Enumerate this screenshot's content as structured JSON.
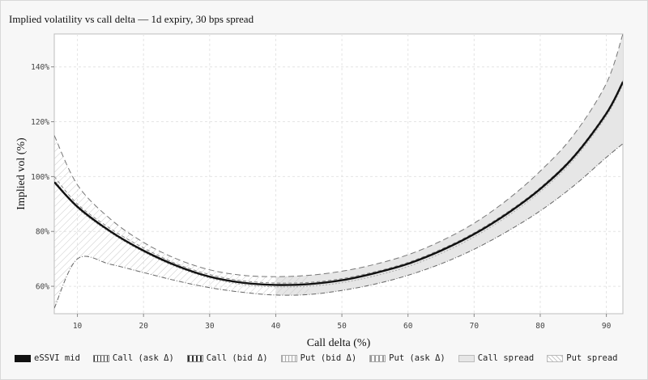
{
  "title": "Implied volatility vs call delta — 1d expiry, 30 bps spread",
  "chart_data": {
    "type": "line",
    "title": "Implied volatility vs call delta — 1d expiry, 30 bps spread",
    "xlabel": "Call delta (%)",
    "ylabel": "Implied vol (%)",
    "xlim": [
      6.5,
      92.5
    ],
    "ylim": [
      50,
      152
    ],
    "x_ticks": [
      10,
      20,
      30,
      40,
      50,
      60,
      70,
      80,
      90
    ],
    "y_ticks": [
      60,
      80,
      100,
      120,
      140
    ],
    "y_tick_labels": [
      "60%",
      "80%",
      "100%",
      "120%",
      "140%"
    ],
    "grid": true,
    "legend_position": "bottom",
    "x": [
      6.5,
      10,
      15,
      20,
      25,
      30,
      35,
      40,
      45,
      50,
      55,
      60,
      65,
      70,
      75,
      80,
      85,
      90,
      92.5
    ],
    "series": [
      {
        "name": "eSSVI mid",
        "values": [
          98,
          89,
          80,
          73,
          67.5,
          63.5,
          61.3,
          60.5,
          60.8,
          62.2,
          64.8,
          68.2,
          73,
          79,
          86.5,
          95.5,
          107,
          123,
          134.5
        ]
      },
      {
        "name": "Call (ask Δ)",
        "values": [
          115,
          97,
          84.5,
          76,
          70,
          66,
          64,
          63.5,
          64,
          65.5,
          68,
          71.5,
          76.5,
          83,
          91.5,
          102,
          115,
          134,
          152
        ]
      },
      {
        "name": "Call (bid Δ)",
        "values": [
          100,
          90,
          81,
          74,
          68.2,
          64.3,
          62,
          61.2,
          61.4,
          62.8,
          65.3,
          68.7,
          73.5,
          79.5,
          87,
          96,
          107.5,
          123.5,
          135
        ]
      },
      {
        "name": "Put (bid Δ)",
        "values": [
          99,
          88.5,
          79.5,
          72.5,
          67,
          63,
          60.6,
          59.8,
          60,
          61.3,
          63.8,
          67.2,
          72,
          78,
          85.5,
          94.5,
          106,
          122,
          133.5
        ]
      },
      {
        "name": "Put (ask Δ)",
        "values": [
          52,
          70,
          68,
          65,
          62,
          59.5,
          57.8,
          56.8,
          57,
          58.5,
          60.8,
          64,
          68.2,
          73.5,
          80,
          87.5,
          96.5,
          107,
          112
        ]
      },
      {
        "name": "Call spread",
        "lower": "Put (ask Δ)",
        "upper": "Call (ask Δ)"
      },
      {
        "name": "Put spread",
        "lower": "Put (ask Δ)",
        "upper": "Call (ask Δ)"
      }
    ],
    "colors": {
      "mid": "#111111",
      "dashed": "#777777",
      "call_fill": "#e6e6e6",
      "put_hatch": "#c8c8c8"
    }
  },
  "legend": [
    {
      "label": "eSSVI mid"
    },
    {
      "label": "Call (ask Δ)"
    },
    {
      "label": "Call (bid Δ)"
    },
    {
      "label": "Put (bid Δ)"
    },
    {
      "label": "Put (ask Δ)"
    },
    {
      "label": "Call spread"
    },
    {
      "label": "Put spread"
    }
  ]
}
